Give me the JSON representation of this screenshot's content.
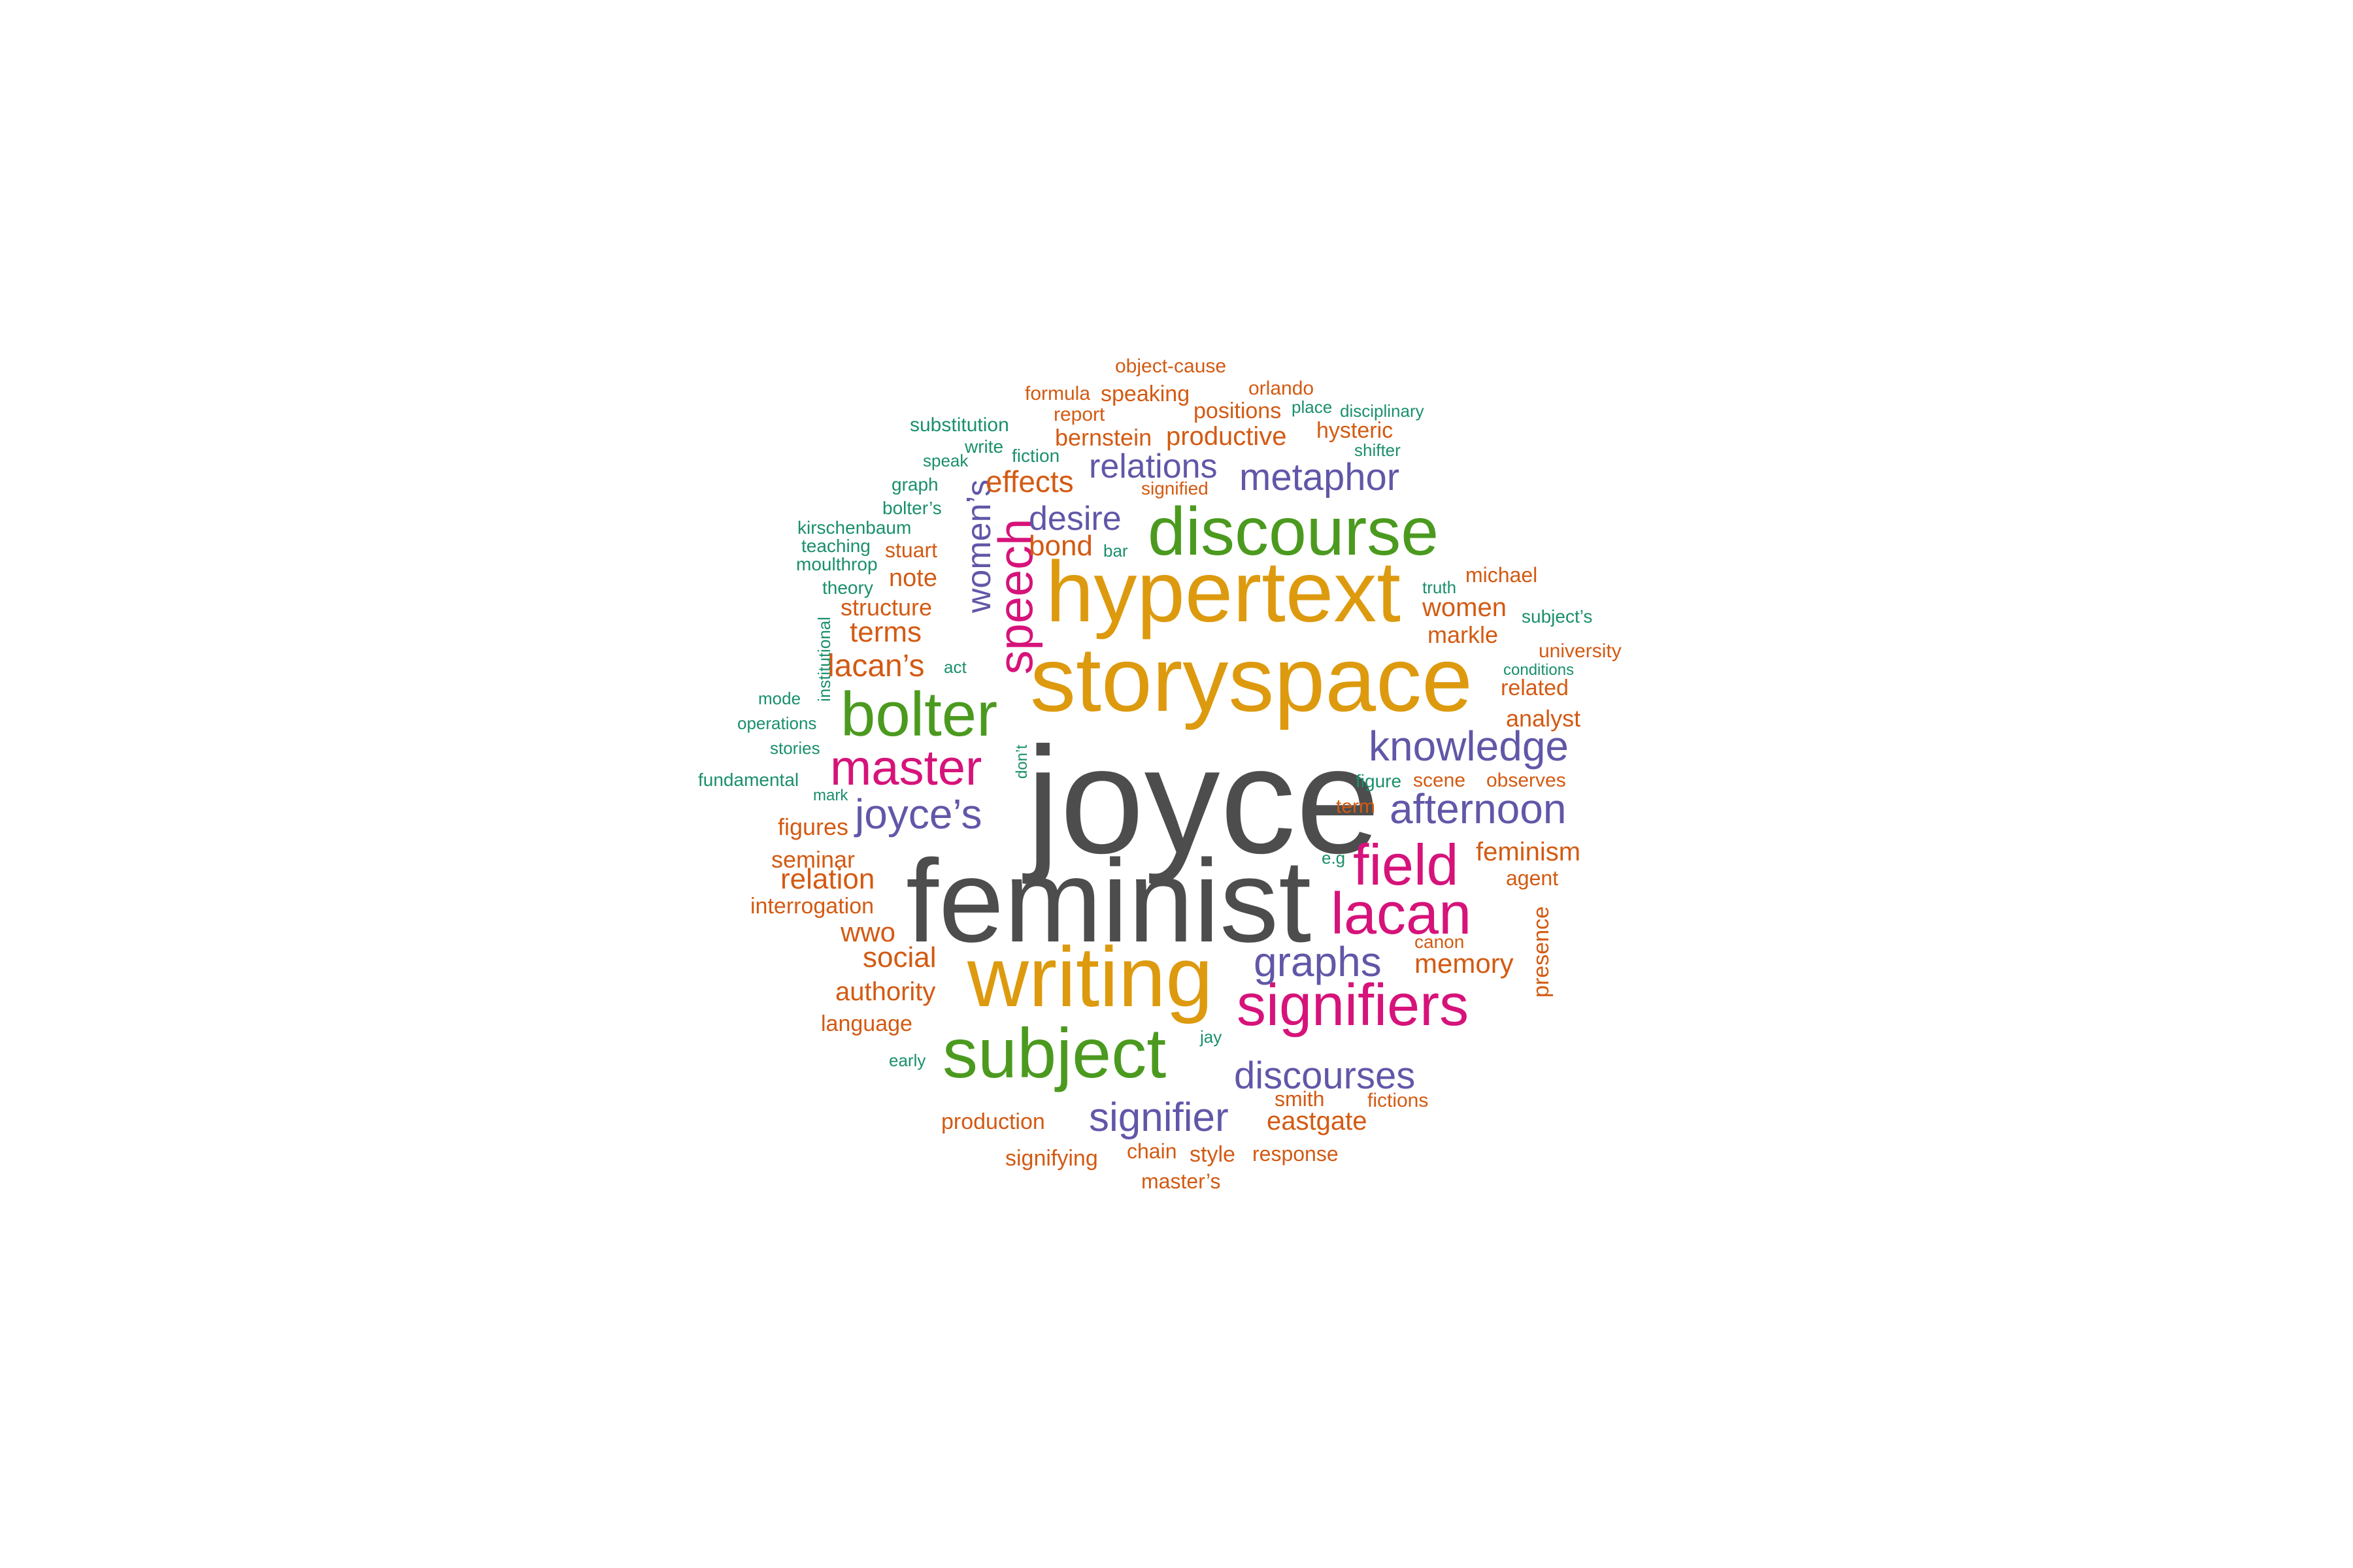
{
  "palette": {
    "gray": "#4d4d4d",
    "gold": "#dd9a0e",
    "green": "#4b9a1f",
    "pink": "#d6137a",
    "purple": "#6157a8",
    "orange": "#d35a12",
    "teal": "#1a8f6c"
  },
  "words": [
    "joyce",
    "feminist",
    "storyspace",
    "hypertext",
    "writing",
    "discourse",
    "subject",
    "bolter",
    "signifiers",
    "lacan",
    "field",
    "speech",
    "master",
    "knowledge",
    "afternoon",
    "joyce’s",
    "graphs",
    "discourses",
    "signifier",
    "metaphor",
    "women’s",
    "relations",
    "desire",
    "effects",
    "bond",
    "lacan’s",
    "terms",
    "structure",
    "note",
    "memory",
    "relation",
    "social",
    "authority",
    "wwo",
    "seminar",
    "figures",
    "interrogation",
    "language",
    "feminism",
    "eastgate",
    "women",
    "markle",
    "analyst",
    "related",
    "productive",
    "bernstein",
    "positions",
    "speaking",
    "hysteric",
    "object-cause",
    "formula",
    "report",
    "orlando",
    "signified",
    "michael",
    "production",
    "signifying",
    "chain",
    "style",
    "response",
    "master’s",
    "smith",
    "fictions",
    "agent",
    "presence",
    "term",
    "scene",
    "observes",
    "university",
    "canon",
    "stuart",
    "substitution",
    "place",
    "disciplinary",
    "fiction",
    "write",
    "speak",
    "graph",
    "bolter’s",
    "kirschenbaum",
    "teaching",
    "moulthrop",
    "theory",
    "bar",
    "truth",
    "subject’s",
    "conditions",
    "act",
    "institutional",
    "mode",
    "operations",
    "stories",
    "fundamental",
    "mark",
    "don’t",
    "figure",
    "e.g",
    "jay",
    "early",
    "shifter"
  ]
}
